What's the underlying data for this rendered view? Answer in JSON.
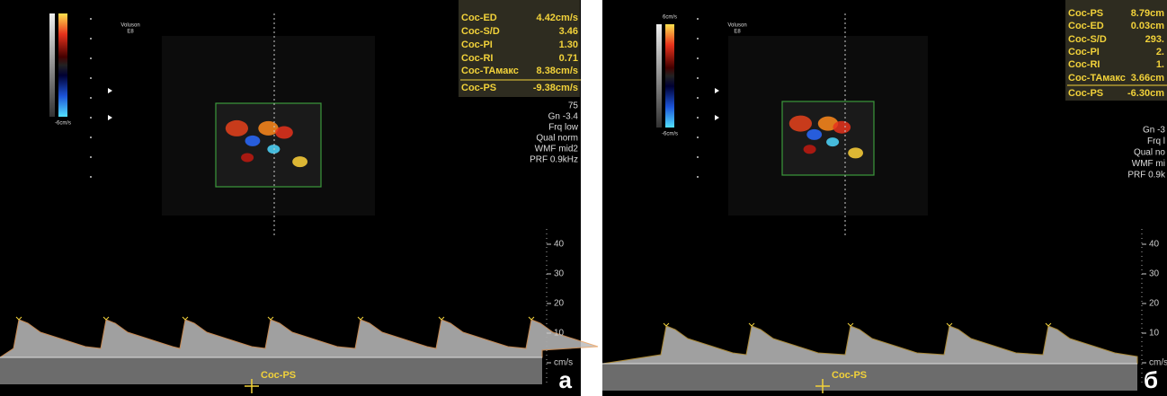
{
  "panels": [
    {
      "panel_label": "а",
      "brand": [
        "Voluson",
        "E8"
      ],
      "colorbar": {
        "bottom": "-6cm/s"
      },
      "measurements": [
        {
          "label": "Coc-ED",
          "value": "4.42cm/s"
        },
        {
          "label": "Coc-S/D",
          "value": "3.46"
        },
        {
          "label": "Coc-PI",
          "value": "1.30"
        },
        {
          "label": "Coc-RI",
          "value": "0.71"
        },
        {
          "label": "Coc-TAмакс",
          "value": "8.38cm/s"
        },
        {
          "label": "Coc-PS",
          "value": "-9.38cm/s"
        }
      ],
      "info": [
        "75",
        "Gn -3.4",
        "Frq low",
        "Qual norm",
        "WMF mid2",
        "PRF 0.9kHz"
      ],
      "scale": [
        "40",
        "30",
        "20",
        "10",
        "cm/s"
      ],
      "cursor_label": "Coc-PS"
    },
    {
      "panel_label": "б",
      "brand": [
        "Voluson",
        "E8"
      ],
      "colorbar": {
        "top": "6cm/s",
        "bottom": "-6cm/s"
      },
      "measurements": [
        {
          "label": "Coc-PS",
          "value": "8.79cm"
        },
        {
          "label": "Coc-ED",
          "value": "0.03cm"
        },
        {
          "label": "Coc-S/D",
          "value": "293."
        },
        {
          "label": "Coc-PI",
          "value": "2."
        },
        {
          "label": "Coc-RI",
          "value": "1."
        },
        {
          "label": "Coc-TAмакс",
          "value": "3.66cm"
        },
        {
          "label": "Coc-PS",
          "value": "-6.30cm"
        }
      ],
      "info": [
        "Gn -3",
        "Frq l",
        "Qual no",
        "WMF mi",
        "PRF 0.9k"
      ],
      "scale": [
        "40",
        "30",
        "20",
        "10",
        "cm/s"
      ],
      "cursor_label": "Coc-PS"
    }
  ]
}
